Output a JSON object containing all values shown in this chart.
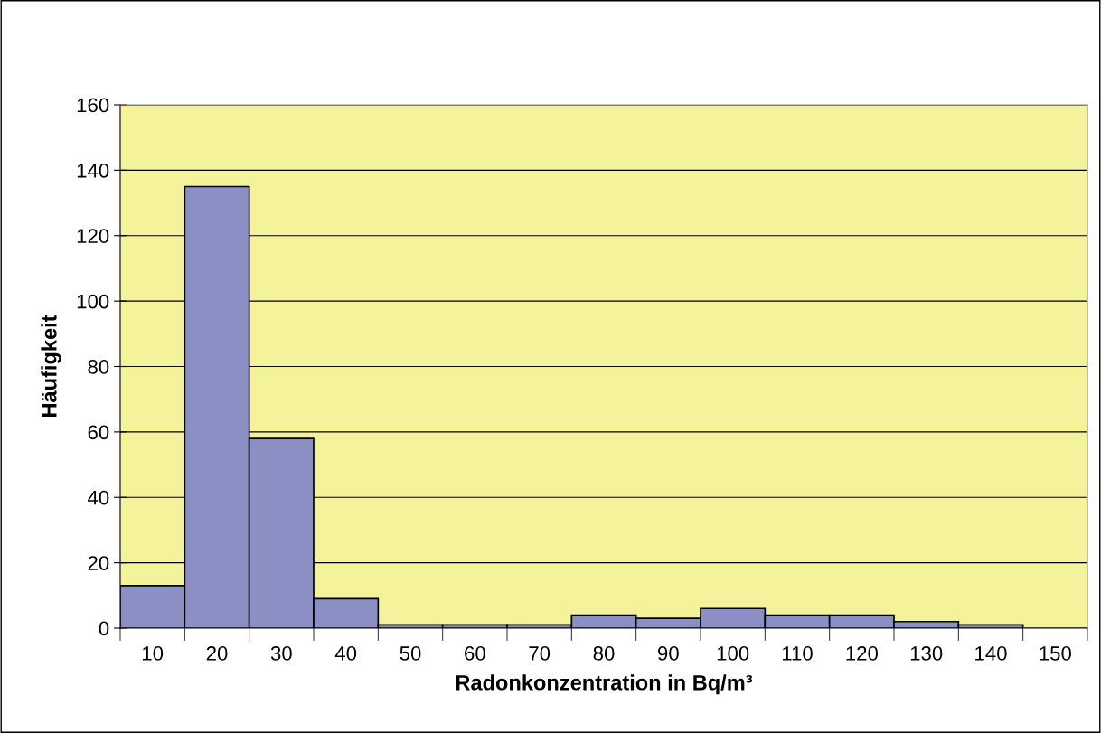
{
  "chart_data": {
    "type": "bar",
    "xlabel": "Radonkonzentration in Bq/m³",
    "ylabel": "Häufigkeit",
    "categories": [
      "10",
      "20",
      "30",
      "40",
      "50",
      "60",
      "70",
      "80",
      "90",
      "100",
      "110",
      "120",
      "130",
      "140",
      "150"
    ],
    "values": [
      13,
      135,
      58,
      9,
      1,
      1,
      1,
      4,
      3,
      6,
      4,
      4,
      2,
      1,
      null
    ],
    "color": "#8c8fc4",
    "ylim": [
      0,
      160
    ],
    "yticks": [
      0,
      20,
      40,
      60,
      80,
      100,
      120,
      140,
      160
    ],
    "grid": "y",
    "legend": false
  }
}
